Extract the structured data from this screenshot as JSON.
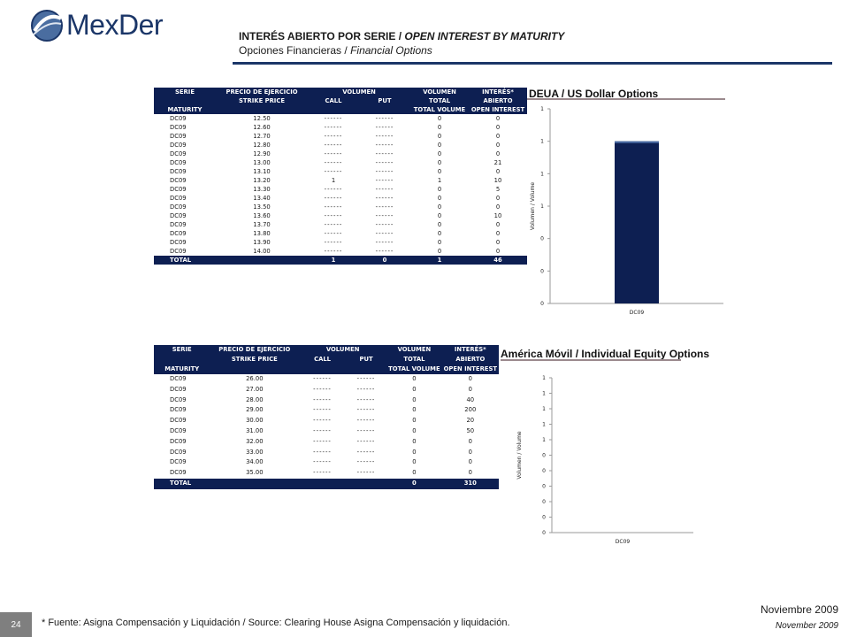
{
  "logo": {
    "text": "MexDer"
  },
  "header": {
    "title_es": "INTERÉS ABIERTO POR SERIE /",
    "title_en": "OPEN INTEREST BY MATURITY",
    "subtitle_es": "Opciones Financieras /",
    "subtitle_en": "Financial Options",
    "accent_color": "#1b3668"
  },
  "table1": {
    "headers": {
      "serie": "SERIE",
      "maturity": "MATURITY",
      "precio": "PRECIO DE EJERCICIO",
      "strike": "STRIKE PRICE",
      "volumen": "VOLUMEN",
      "call": "CALL",
      "put": "PUT",
      "vol_total_es": "VOLUMEN",
      "vol_total_mid": "TOTAL",
      "vol_total_en": "TOTAL VOLUME",
      "interes_es": "INTERÉS*",
      "interes_mid": "ABIERTO",
      "interes_en": "OPEN INTEREST"
    },
    "rows": [
      [
        "DC09",
        "12.50",
        "------",
        "------",
        "0",
        "0"
      ],
      [
        "DC09",
        "12.60",
        "------",
        "------",
        "0",
        "0"
      ],
      [
        "DC09",
        "12.70",
        "------",
        "------",
        "0",
        "0"
      ],
      [
        "DC09",
        "12.80",
        "------",
        "------",
        "0",
        "0"
      ],
      [
        "DC09",
        "12.90",
        "------",
        "------",
        "0",
        "0"
      ],
      [
        "DC09",
        "13.00",
        "------",
        "------",
        "0",
        "21"
      ],
      [
        "DC09",
        "13.10",
        "------",
        "------",
        "0",
        "0"
      ],
      [
        "DC09",
        "13.20",
        "1",
        "------",
        "1",
        "10"
      ],
      [
        "DC09",
        "13.30",
        "------",
        "------",
        "0",
        "5"
      ],
      [
        "DC09",
        "13.40",
        "------",
        "------",
        "0",
        "0"
      ],
      [
        "DC09",
        "13.50",
        "------",
        "------",
        "0",
        "0"
      ],
      [
        "DC09",
        "13.60",
        "------",
        "------",
        "0",
        "10"
      ],
      [
        "DC09",
        "13.70",
        "------",
        "------",
        "0",
        "0"
      ],
      [
        "DC09",
        "13.80",
        "------",
        "------",
        "0",
        "0"
      ],
      [
        "DC09",
        "13.90",
        "------",
        "------",
        "0",
        "0"
      ],
      [
        "DC09",
        "14.00",
        "------",
        "------",
        "0",
        "0"
      ]
    ],
    "total": {
      "label": "TOTAL",
      "call": "1",
      "put": "0",
      "volume": "1",
      "open_interest": "46"
    }
  },
  "table2": {
    "headers": {
      "serie": "SERIE",
      "maturity": "MATURITY",
      "precio": "PRECIO DE EJERCICIO",
      "strike": "STRIKE PRICE",
      "volumen": "VOLUMEN",
      "call": "CALL",
      "put": "PUT",
      "vol_total_es": "VOLUMEN",
      "vol_total_mid": "TOTAL",
      "vol_total_en": "TOTAL VOLUME",
      "interes_es": "INTERÉS*",
      "interes_mid": "ABIERTO",
      "interes_en": "OPEN INTEREST"
    },
    "rows": [
      [
        "DC09",
        "26.00",
        "------",
        "------",
        "0",
        "0"
      ],
      [
        "DC09",
        "27.00",
        "------",
        "------",
        "0",
        "0"
      ],
      [
        "DC09",
        "28.00",
        "------",
        "------",
        "0",
        "40"
      ],
      [
        "DC09",
        "29.00",
        "------",
        "------",
        "0",
        "200"
      ],
      [
        "DC09",
        "30.00",
        "------",
        "------",
        "0",
        "20"
      ],
      [
        "DC09",
        "31.00",
        "------",
        "------",
        "0",
        "50"
      ],
      [
        "DC09",
        "32.00",
        "------",
        "------",
        "0",
        "0"
      ],
      [
        "DC09",
        "33.00",
        "------",
        "------",
        "0",
        "0"
      ],
      [
        "DC09",
        "34.00",
        "------",
        "------",
        "0",
        "0"
      ],
      [
        "DC09",
        "35.00",
        "------",
        "------",
        "0",
        "0"
      ]
    ],
    "total": {
      "label": "TOTAL",
      "call": "",
      "put": "",
      "volume": "0",
      "open_interest": "310"
    }
  },
  "chart_data": [
    {
      "type": "bar",
      "title": "DEUA / US Dollar Options",
      "ylabel": "Volumen / Volume",
      "categories": [
        "DC09"
      ],
      "values": [
        1
      ],
      "ylim": [
        0,
        1.2
      ],
      "y_tick_labels": [
        "0",
        "0",
        "0",
        "1",
        "1",
        "1",
        "1"
      ],
      "bar_color": "#0d1f52"
    },
    {
      "type": "bar",
      "title": "América Móvil / Individual Equity Options",
      "ylabel": "Volumen / Volume",
      "categories": [
        "DC09"
      ],
      "values": [
        0
      ],
      "ylim": [
        0,
        1
      ],
      "y_tick_labels": [
        "0",
        "0",
        "0",
        "0",
        "0",
        "0",
        "1",
        "1",
        "1",
        "1",
        "1"
      ],
      "bar_color": "#0d1f52"
    }
  ],
  "footer": {
    "page_number": "24",
    "note": "* Fuente: Asigna Compensación y Liquidación / Source: Clearing House Asigna Compensación y liquidación.",
    "date_es": "Noviembre 2009",
    "date_en": "November  2009"
  }
}
